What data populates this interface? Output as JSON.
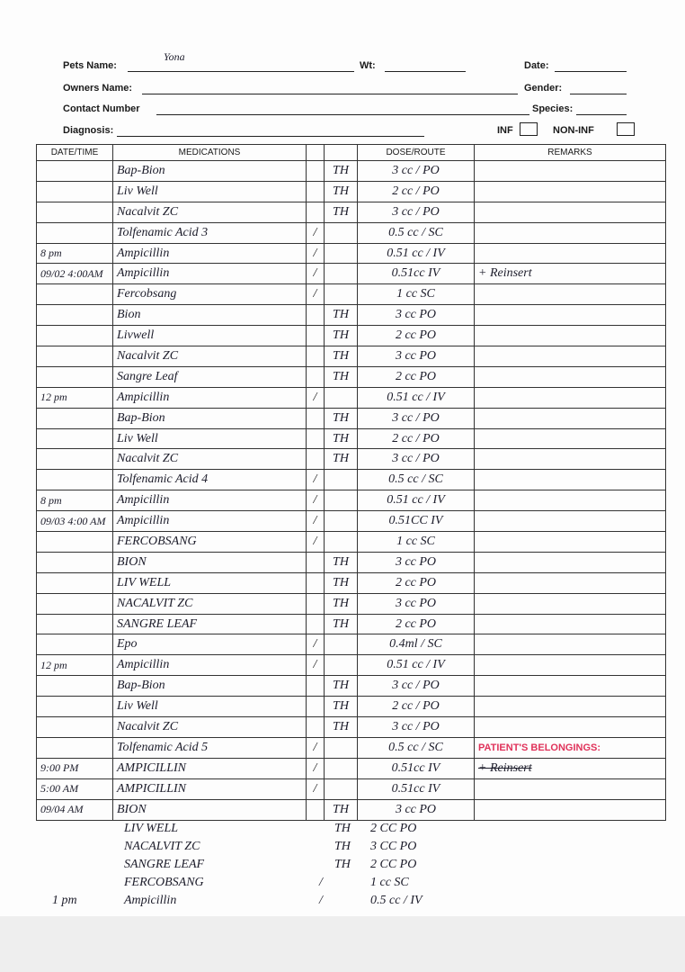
{
  "form": {
    "pets_name_label": "Pets Name:",
    "pets_name_value": "Yona",
    "wt_label": "Wt:",
    "date_label": "Date:",
    "owners_name_label": "Owners Name:",
    "gender_label": "Gender:",
    "contact_label": "Contact Number",
    "species_label": "Species:",
    "diagnosis_label": "Diagnosis:",
    "inf_label": "INF",
    "noninf_label": "NON-INF"
  },
  "table": {
    "headers": [
      "DATE/TIME",
      "MEDICATIONS",
      "",
      "",
      "DOSE/ROUTE",
      "REMARKS"
    ],
    "rows": [
      {
        "dt": "",
        "med": "Bap-Bion",
        "chk": "",
        "th": "TH",
        "dose": "3 cc / PO",
        "rem": ""
      },
      {
        "dt": "",
        "med": "Liv Well",
        "chk": "",
        "th": "TH",
        "dose": "2 cc / PO",
        "rem": ""
      },
      {
        "dt": "",
        "med": "Nacalvit ZC",
        "chk": "",
        "th": "TH",
        "dose": "3 cc / PO",
        "rem": ""
      },
      {
        "dt": "",
        "med": "Tolfenamic Acid 3",
        "chk": "/",
        "th": "",
        "dose": "0.5 cc / SC",
        "rem": ""
      },
      {
        "dt": "8 pm",
        "med": "Ampicillin",
        "chk": "/",
        "th": "",
        "dose": "0.51 cc / IV",
        "rem": ""
      },
      {
        "dt": "09/02 4:00AM",
        "med": "Ampicillin",
        "chk": "/",
        "th": "",
        "dose": "0.51cc IV",
        "rem": "+ Reinsert"
      },
      {
        "dt": "",
        "med": "Fercobsang",
        "chk": "/",
        "th": "",
        "dose": "1 cc SC",
        "rem": ""
      },
      {
        "dt": "",
        "med": "Bion",
        "chk": "",
        "th": "TH",
        "dose": "3 cc PO",
        "rem": ""
      },
      {
        "dt": "",
        "med": "Livwell",
        "chk": "",
        "th": "TH",
        "dose": "2 cc PO",
        "rem": ""
      },
      {
        "dt": "",
        "med": "Nacalvit ZC",
        "chk": "",
        "th": "TH",
        "dose": "3 cc PO",
        "rem": ""
      },
      {
        "dt": "",
        "med": "Sangre Leaf",
        "chk": "",
        "th": "TH",
        "dose": "2 cc PO",
        "rem": ""
      },
      {
        "dt": "12 pm",
        "med": "Ampicillin",
        "chk": "/",
        "th": "",
        "dose": "0.51 cc / IV",
        "rem": ""
      },
      {
        "dt": "",
        "med": "Bap-Bion",
        "chk": "",
        "th": "TH",
        "dose": "3 cc / PO",
        "rem": ""
      },
      {
        "dt": "",
        "med": "Liv Well",
        "chk": "",
        "th": "TH",
        "dose": "2 cc / PO",
        "rem": ""
      },
      {
        "dt": "",
        "med": "Nacalvit ZC",
        "chk": "",
        "th": "TH",
        "dose": "3 cc / PO",
        "rem": ""
      },
      {
        "dt": "",
        "med": "Tolfenamic Acid 4",
        "chk": "/",
        "th": "",
        "dose": "0.5 cc / SC",
        "rem": ""
      },
      {
        "dt": "8 pm",
        "med": "Ampicillin",
        "chk": "/",
        "th": "",
        "dose": "0.51 cc / IV",
        "rem": ""
      },
      {
        "dt": "09/03 4:00 AM",
        "med": "Ampicillin",
        "chk": "/",
        "th": "",
        "dose": "0.51CC IV",
        "rem": ""
      },
      {
        "dt": "",
        "med": "FERCOBSANG",
        "chk": "/",
        "th": "",
        "dose": "1 cc SC",
        "rem": ""
      },
      {
        "dt": "",
        "med": "BION",
        "chk": "",
        "th": "TH",
        "dose": "3 cc PO",
        "rem": ""
      },
      {
        "dt": "",
        "med": "LIV WELL",
        "chk": "",
        "th": "TH",
        "dose": "2 cc PO",
        "rem": ""
      },
      {
        "dt": "",
        "med": "NACALVIT ZC",
        "chk": "",
        "th": "TH",
        "dose": "3 cc PO",
        "rem": ""
      },
      {
        "dt": "",
        "med": "SANGRE LEAF",
        "chk": "",
        "th": "TH",
        "dose": "2 cc PO",
        "rem": ""
      },
      {
        "dt": "",
        "med": "Epo",
        "chk": "/",
        "th": "",
        "dose": "0.4ml / SC",
        "rem": ""
      },
      {
        "dt": "12 pm",
        "med": "Ampicillin",
        "chk": "/",
        "th": "",
        "dose": "0.51 cc / IV",
        "rem": ""
      },
      {
        "dt": "",
        "med": "Bap-Bion",
        "chk": "",
        "th": "TH",
        "dose": "3 cc / PO",
        "rem": ""
      },
      {
        "dt": "",
        "med": "Liv Well",
        "chk": "",
        "th": "TH",
        "dose": "2 cc / PO",
        "rem": ""
      },
      {
        "dt": "",
        "med": "Nacalvit ZC",
        "chk": "",
        "th": "TH",
        "dose": "3 cc / PO",
        "rem": ""
      },
      {
        "dt": "",
        "med": "Tolfenamic Acid 5",
        "chk": "/",
        "th": "",
        "dose": "0.5 cc / SC",
        "rem": "PATIENT'S BELONGINGS:"
      },
      {
        "dt": "9:00 PM",
        "med": "AMPICILLIN",
        "chk": "/",
        "th": "",
        "dose": "0.51cc IV",
        "rem": "+ Reinsert"
      },
      {
        "dt": "5:00 AM",
        "med": "AMPICILLIN",
        "chk": "/",
        "th": "",
        "dose": "0.51cc IV",
        "rem": ""
      },
      {
        "dt": "09/04 AM",
        "med": "BION",
        "chk": "",
        "th": "TH",
        "dose": "3 cc PO",
        "rem": ""
      }
    ]
  },
  "extra_entries": [
    {
      "dt": "",
      "med": "LIV WELL",
      "chk": "",
      "th": "TH",
      "dose": "2 CC   PO"
    },
    {
      "dt": "",
      "med": "NACALVIT ZC",
      "chk": "",
      "th": "TH",
      "dose": "3 CC   PO"
    },
    {
      "dt": "",
      "med": "SANGRE LEAF",
      "chk": "",
      "th": "TH",
      "dose": "2 CC   PO"
    },
    {
      "dt": "",
      "med": "FERCOBSANG",
      "chk": "/",
      "th": "",
      "dose": "1 cc   SC"
    },
    {
      "dt": "1 pm",
      "med": "Ampicillin",
      "chk": "/",
      "th": "",
      "dose": "0.5 cc / IV"
    }
  ]
}
